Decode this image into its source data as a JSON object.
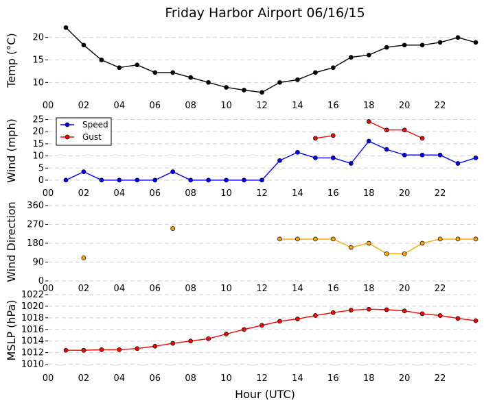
{
  "title": "Friday Harbor Airport 06/16/15",
  "xlabel": "Hour (UTC)",
  "xticks": [
    "00",
    "02",
    "04",
    "06",
    "08",
    "10",
    "12",
    "14",
    "16",
    "18",
    "20",
    "22"
  ],
  "chart_data": [
    {
      "type": "line",
      "ylabel": "Temp (°C)",
      "ylim": [
        7,
        23
      ],
      "yticks": [
        10,
        15,
        20
      ],
      "grid": true,
      "series": [
        {
          "color": "#000000",
          "x": [
            1,
            2,
            3,
            4,
            5,
            6,
            7,
            8,
            9,
            10,
            11,
            12,
            13,
            14,
            15,
            16,
            17,
            18,
            19,
            20,
            21,
            22,
            23,
            24
          ],
          "values": [
            22.2,
            18.3,
            15.0,
            13.3,
            13.9,
            12.2,
            12.2,
            11.1,
            10.0,
            8.9,
            8.3,
            7.8,
            10.0,
            10.6,
            12.2,
            13.3,
            15.6,
            16.1,
            17.8,
            18.3,
            18.3,
            18.9,
            20.0,
            18.9
          ]
        }
      ]
    },
    {
      "type": "line",
      "ylabel": "Wind (mph)",
      "ylim": [
        -2,
        26
      ],
      "yticks": [
        0,
        5,
        10,
        15,
        20,
        25
      ],
      "grid": true,
      "legend": "top-left",
      "series": [
        {
          "name": "Speed",
          "color": "#0000ff",
          "x": [
            1,
            2,
            3,
            4,
            5,
            6,
            7,
            8,
            9,
            10,
            11,
            12,
            13,
            14,
            15,
            16,
            17,
            18,
            19,
            20,
            21,
            22,
            23,
            24
          ],
          "values": [
            0,
            3.5,
            0,
            0,
            0,
            0,
            3.5,
            0,
            0,
            0,
            0,
            0,
            8.1,
            11.5,
            9.2,
            9.2,
            6.9,
            16.1,
            12.7,
            10.4,
            10.4,
            10.4,
            6.9,
            9.2
          ]
        },
        {
          "name": "Gust",
          "color": "#ff0000",
          "x": [
            1,
            2,
            3,
            4,
            5,
            6,
            7,
            8,
            9,
            10,
            11,
            12,
            13,
            14,
            15,
            16,
            17,
            18,
            19,
            20,
            21,
            22,
            23,
            24
          ],
          "values": [
            null,
            null,
            null,
            null,
            null,
            null,
            null,
            null,
            null,
            null,
            null,
            null,
            null,
            null,
            17.3,
            18.4,
            null,
            24.2,
            20.7,
            20.7,
            17.3,
            null,
            null,
            null
          ]
        }
      ]
    },
    {
      "type": "scatter",
      "ylabel": "Wind Direction",
      "ylim": [
        0,
        360
      ],
      "yticks": [
        0,
        90,
        180,
        270,
        360
      ],
      "grid": true,
      "series": [
        {
          "color": "#ffa500",
          "x": [
            1,
            2,
            3,
            4,
            5,
            6,
            7,
            8,
            9,
            10,
            11,
            12,
            13,
            14,
            15,
            16,
            17,
            18,
            19,
            20,
            21,
            22,
            23,
            24
          ],
          "values": [
            null,
            110,
            null,
            null,
            null,
            null,
            250,
            null,
            null,
            null,
            null,
            null,
            200,
            200,
            200,
            200,
            160,
            180,
            130,
            130,
            180,
            200,
            200,
            200
          ]
        }
      ]
    },
    {
      "type": "line",
      "ylabel": "MSLP (hPa)",
      "ylim": [
        1009,
        1022
      ],
      "yticks": [
        1010,
        1012,
        1014,
        1016,
        1018,
        1020,
        1022
      ],
      "grid": true,
      "series": [
        {
          "color": "#ff0000",
          "x": [
            1,
            2,
            3,
            4,
            5,
            6,
            7,
            8,
            9,
            10,
            11,
            12,
            13,
            14,
            15,
            16,
            17,
            18,
            19,
            20,
            21,
            22,
            23,
            24
          ],
          "values": [
            1012.4,
            1012.4,
            1012.5,
            1012.5,
            1012.7,
            1013.1,
            1013.6,
            1014.0,
            1014.4,
            1015.2,
            1016.0,
            1016.7,
            1017.4,
            1017.8,
            1018.4,
            1018.9,
            1019.3,
            1019.5,
            1019.4,
            1019.2,
            1018.7,
            1018.4,
            1017.9,
            1017.5
          ]
        }
      ]
    }
  ]
}
